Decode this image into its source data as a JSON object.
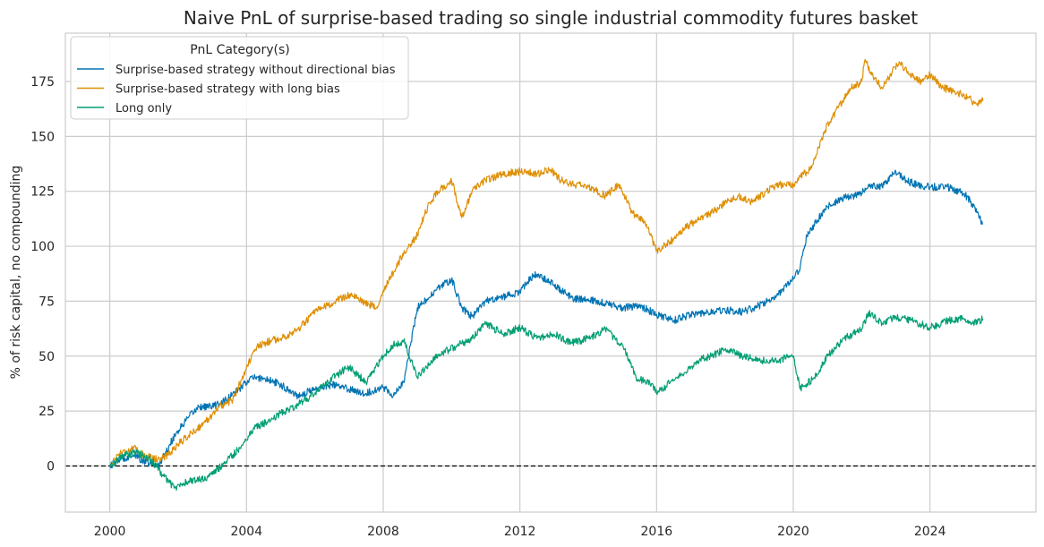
{
  "chart_data": {
    "type": "line",
    "title": "Naive PnL of surprise-based trading so single industrial commodity futures basket",
    "xlabel": "",
    "ylabel": "% of risk capital, no compounding",
    "xlim": [
      1998.7,
      2027.1
    ],
    "ylim": [
      -21,
      197
    ],
    "x_ticks": [
      2000,
      2004,
      2008,
      2012,
      2016,
      2020,
      2024
    ],
    "x_tick_labels": [
      "2000",
      "2004",
      "2008",
      "2012",
      "2016",
      "2020",
      "2024"
    ],
    "y_ticks": [
      0,
      25,
      50,
      75,
      100,
      125,
      150,
      175
    ],
    "y_tick_labels": [
      "0",
      "25",
      "50",
      "75",
      "100",
      "125",
      "150",
      "175"
    ],
    "grid": true,
    "zero_line": {
      "value": 0,
      "style": "dashed",
      "color": "#000000"
    },
    "legend": {
      "title": "PnL Category(s)",
      "position": "top-left"
    },
    "series": [
      {
        "name": "Surprise-based strategy without directional bias",
        "color": "#0173b2",
        "x": [
          2000.0,
          2000.3,
          2000.7,
          2001.0,
          2001.4,
          2001.6,
          2001.9,
          2002.3,
          2002.6,
          2003.0,
          2003.4,
          2003.8,
          2004.1,
          2004.5,
          2005.0,
          2005.5,
          2006.0,
          2006.5,
          2007.0,
          2007.5,
          2008.0,
          2008.3,
          2008.6,
          2008.8,
          2009.0,
          2009.3,
          2009.7,
          2010.0,
          2010.3,
          2010.6,
          2011.0,
          2011.5,
          2012.0,
          2012.4,
          2012.8,
          2013.2,
          2013.6,
          2014.0,
          2014.5,
          2015.0,
          2015.5,
          2016.0,
          2016.5,
          2017.0,
          2017.5,
          2018.0,
          2018.5,
          2019.0,
          2019.5,
          2020.0,
          2020.2,
          2020.4,
          2020.7,
          2021.0,
          2021.5,
          2022.0,
          2022.2,
          2022.6,
          2023.0,
          2023.3,
          2023.6,
          2024.0,
          2024.5,
          2025.0,
          2025.3,
          2025.55
        ],
        "y": [
          0,
          3,
          5,
          2,
          0,
          5,
          14,
          22,
          27,
          27,
          30,
          35,
          40,
          40,
          37,
          32,
          35,
          37,
          35,
          33,
          36,
          32,
          38,
          55,
          72,
          76,
          82,
          85,
          72,
          68,
          75,
          77,
          79,
          87,
          85,
          80,
          76,
          76,
          74,
          72,
          73,
          69,
          66,
          69,
          70,
          71,
          70,
          73,
          77,
          85,
          90,
          105,
          112,
          118,
          122,
          124,
          128,
          127,
          134,
          130,
          128,
          127,
          127,
          124,
          118,
          110
        ]
      },
      {
        "name": "Surprise-based strategy with long bias",
        "color": "#de8f05",
        "x": [
          2000.0,
          2000.3,
          2000.7,
          2001.0,
          2001.4,
          2001.7,
          2002.0,
          2002.4,
          2002.8,
          2003.2,
          2003.6,
          2004.0,
          2004.3,
          2004.7,
          2005.0,
          2005.5,
          2006.0,
          2006.5,
          2007.0,
          2007.4,
          2007.8,
          2008.0,
          2008.3,
          2008.6,
          2009.0,
          2009.3,
          2009.6,
          2010.0,
          2010.3,
          2010.6,
          2011.0,
          2011.5,
          2012.0,
          2012.5,
          2012.9,
          2013.2,
          2013.6,
          2014.0,
          2014.5,
          2014.9,
          2015.3,
          2015.7,
          2016.0,
          2016.4,
          2016.8,
          2017.2,
          2017.6,
          2018.0,
          2018.4,
          2018.8,
          2019.2,
          2019.6,
          2020.0,
          2020.2,
          2020.5,
          2020.9,
          2021.3,
          2021.7,
          2022.0,
          2022.1,
          2022.3,
          2022.6,
          2022.9,
          2023.1,
          2023.4,
          2023.7,
          2024.0,
          2024.4,
          2024.8,
          2025.1,
          2025.3,
          2025.55
        ],
        "y": [
          0,
          6,
          8,
          5,
          3,
          5,
          10,
          15,
          20,
          27,
          30,
          45,
          54,
          57,
          58,
          62,
          70,
          74,
          78,
          75,
          72,
          80,
          88,
          97,
          105,
          118,
          125,
          130,
          113,
          125,
          130,
          133,
          134,
          133,
          135,
          130,
          128,
          127,
          123,
          128,
          115,
          110,
          98,
          102,
          108,
          112,
          115,
          120,
          123,
          120,
          125,
          128,
          128,
          132,
          135,
          152,
          163,
          172,
          175,
          185,
          178,
          172,
          180,
          184,
          178,
          175,
          178,
          172,
          170,
          168,
          165,
          166
        ]
      },
      {
        "name": "Long only",
        "color": "#029e73",
        "x": [
          2000.0,
          2000.4,
          2000.8,
          2001.2,
          2001.6,
          2001.9,
          2002.3,
          2002.7,
          2003.0,
          2003.4,
          2003.8,
          2004.2,
          2004.6,
          2005.0,
          2005.5,
          2006.0,
          2006.5,
          2007.0,
          2007.5,
          2008.0,
          2008.3,
          2008.6,
          2009.0,
          2009.4,
          2009.8,
          2010.2,
          2010.6,
          2011.0,
          2011.5,
          2012.0,
          2012.5,
          2013.0,
          2013.5,
          2014.0,
          2014.5,
          2015.0,
          2015.4,
          2015.8,
          2016.0,
          2016.4,
          2016.8,
          2017.2,
          2017.6,
          2018.0,
          2018.5,
          2019.0,
          2019.5,
          2020.0,
          2020.2,
          2020.6,
          2021.0,
          2021.5,
          2022.0,
          2022.2,
          2022.6,
          2023.0,
          2023.5,
          2024.0,
          2024.5,
          2025.0,
          2025.3,
          2025.55
        ],
        "y": [
          0,
          5,
          6,
          3,
          -5,
          -10,
          -7,
          -6,
          -4,
          2,
          8,
          17,
          20,
          24,
          28,
          33,
          40,
          45,
          38,
          50,
          55,
          57,
          40,
          48,
          52,
          55,
          58,
          65,
          60,
          63,
          58,
          60,
          56,
          58,
          62,
          55,
          40,
          38,
          33,
          38,
          42,
          48,
          50,
          53,
          50,
          48,
          48,
          50,
          35,
          40,
          50,
          58,
          62,
          70,
          65,
          68,
          66,
          63,
          66,
          67,
          65,
          67
        ]
      }
    ]
  }
}
